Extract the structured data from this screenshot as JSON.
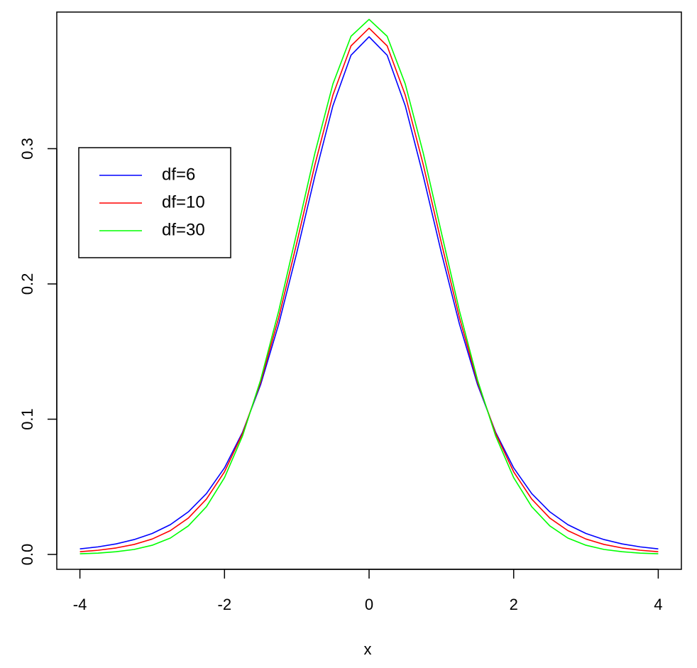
{
  "chart_data": {
    "type": "line",
    "xlabel": "x",
    "x": [
      -4,
      -3.75,
      -3.5,
      -3.25,
      -3,
      -2.75,
      -2.5,
      -2.25,
      -2,
      -1.75,
      -1.5,
      -1.25,
      -1,
      -0.75,
      -0.5,
      -0.25,
      0,
      0.25,
      0.5,
      0.75,
      1,
      1.25,
      1.5,
      1.75,
      2,
      2.25,
      2.5,
      2.75,
      3,
      3.25,
      3.5,
      3.75,
      4
    ],
    "series": [
      {
        "name": "df=6",
        "color": "#0000ff",
        "values": [
          0.0041,
          0.0056,
          0.0078,
          0.011,
          0.0155,
          0.022,
          0.0315,
          0.045,
          0.064,
          0.0904,
          0.1256,
          0.1703,
          0.2231,
          0.2797,
          0.3318,
          0.3691,
          0.3827,
          0.3691,
          0.3318,
          0.2797,
          0.2231,
          0.1703,
          0.1256,
          0.0904,
          0.064,
          0.045,
          0.0315,
          0.022,
          0.0155,
          0.011,
          0.0078,
          0.0056,
          0.0041
        ]
      },
      {
        "name": "df=10",
        "color": "#ff0000",
        "values": [
          0.002,
          0.0031,
          0.0048,
          0.0074,
          0.0114,
          0.0176,
          0.0269,
          0.0409,
          0.0611,
          0.0895,
          0.1274,
          0.1751,
          0.2304,
          0.288,
          0.3397,
          0.376,
          0.3891,
          0.376,
          0.3397,
          0.288,
          0.2304,
          0.1751,
          0.1274,
          0.0895,
          0.0611,
          0.0409,
          0.0269,
          0.0176,
          0.0114,
          0.0074,
          0.0048,
          0.0031,
          0.002
        ]
      },
      {
        "name": "df=30",
        "color": "#00ff00",
        "values": [
          0.0005,
          0.001,
          0.002,
          0.0037,
          0.0068,
          0.0121,
          0.0211,
          0.0353,
          0.0568,
          0.0877,
          0.129,
          0.1801,
          0.238,
          0.2966,
          0.3479,
          0.3831,
          0.3956,
          0.3831,
          0.3479,
          0.2966,
          0.238,
          0.1801,
          0.129,
          0.0877,
          0.0568,
          0.0353,
          0.0211,
          0.0121,
          0.0068,
          0.0037,
          0.002,
          0.001,
          0.0005
        ]
      }
    ],
    "xlim": [
      -4.32,
      4.32
    ],
    "xticks": [
      -4,
      -2,
      0,
      2,
      4
    ],
    "ylim": [
      -0.011,
      0.401
    ],
    "yticks": [
      {
        "value": 0,
        "label": "0.0"
      },
      0.1,
      0.2,
      0.3
    ],
    "legend": "left"
  }
}
